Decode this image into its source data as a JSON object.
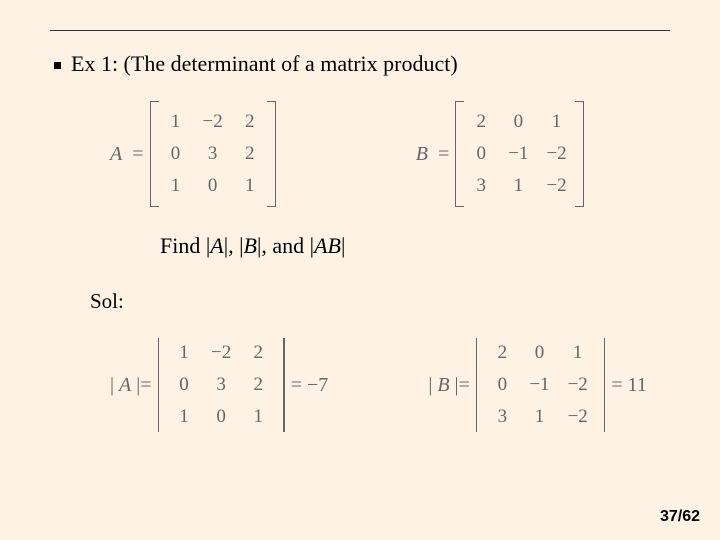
{
  "title": "Ex 1:  (The determinant of a matrix product)",
  "matrices": {
    "A": {
      "label": "A",
      "equals": "=",
      "cells": [
        "1",
        "−2",
        "2",
        "0",
        "3",
        "2",
        "1",
        "0",
        "1"
      ]
    },
    "B": {
      "label": "B",
      "equals": "=",
      "cells": [
        "2",
        "0",
        "1",
        "0",
        "−1",
        "−2",
        "3",
        "1",
        "−2"
      ]
    }
  },
  "find_line": {
    "prefix": "Find  |",
    "a": "A",
    "mid1": "|, |",
    "b": "B",
    "mid2": "|, and |",
    "ab": "AB",
    "suffix": "|"
  },
  "sol_label": "Sol:",
  "determinants": {
    "A": {
      "label_open": "| ",
      "label_var": "A",
      "label_close": " |",
      "equals": "=",
      "cells": [
        "1",
        "−2",
        "2",
        "0",
        "3",
        "2",
        "1",
        "0",
        "1"
      ],
      "result": "= −7"
    },
    "B": {
      "label_open": "| ",
      "label_var": "B",
      "label_close": " |",
      "equals": "=",
      "cells": [
        "2",
        "0",
        "1",
        "0",
        "−1",
        "−2",
        "3",
        "1",
        "−2"
      ],
      "result": "= 11"
    }
  },
  "page_number": "37/62",
  "style": {
    "background_color": "#fdf2e4",
    "text_color": "#000000",
    "math_color": "#666666",
    "body_fontsize_pt": 17,
    "math_fontsize_pt": 15,
    "matrix_rows": 3,
    "matrix_cols": 3
  }
}
